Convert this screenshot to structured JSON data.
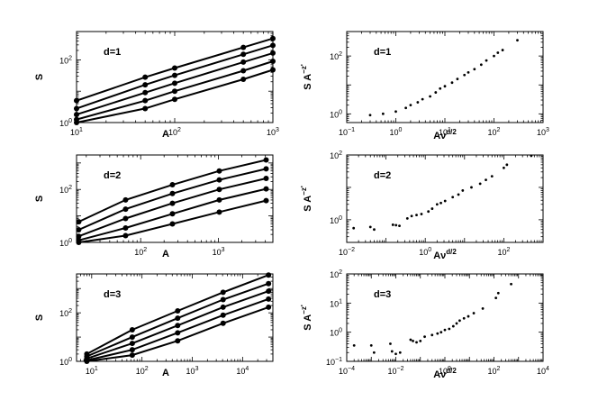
{
  "chart_data": [
    {
      "id": "left-d1",
      "type": "line",
      "panel_label": "d=1",
      "xlabel": "A",
      "ylabel": "S",
      "xscale": "log",
      "yscale": "log",
      "xlim": [
        10,
        1000
      ],
      "ylim": [
        1,
        800
      ],
      "xticks": [
        {
          "v": 10,
          "base": "10",
          "exp": "1"
        },
        {
          "v": 100,
          "base": "10",
          "exp": "2"
        },
        {
          "v": 1000,
          "base": "10",
          "exp": "3"
        }
      ],
      "yticks": [
        {
          "v": 1,
          "base": "10",
          "exp": "0"
        },
        {
          "v": 100,
          "base": "10",
          "exp": "2"
        }
      ],
      "x": [
        10,
        50,
        100,
        500,
        1000
      ],
      "series": [
        {
          "values": [
            5.0,
            28,
            55,
            250,
            480
          ]
        },
        {
          "values": [
            2.8,
            16,
            32,
            150,
            290
          ]
        },
        {
          "values": [
            1.8,
            9,
            18,
            85,
            165
          ]
        },
        {
          "values": [
            1.25,
            5,
            10,
            45,
            90
          ]
        },
        {
          "values": [
            1.0,
            2.8,
            5.5,
            24,
            48
          ]
        }
      ]
    },
    {
      "id": "left-d2",
      "type": "line",
      "panel_label": "d=2",
      "xlabel": "A",
      "ylabel": "S",
      "xscale": "log",
      "yscale": "log",
      "xlim": [
        15,
        5000
      ],
      "ylim": [
        1,
        2000
      ],
      "xticks": [
        {
          "v": 100,
          "base": "10",
          "exp": "2"
        },
        {
          "v": 1000,
          "base": "10",
          "exp": "3"
        }
      ],
      "yticks": [
        {
          "v": 1,
          "base": "10",
          "exp": "0"
        },
        {
          "v": 100,
          "base": "10",
          "exp": "2"
        }
      ],
      "x": [
        16,
        64,
        256,
        1024,
        4096
      ],
      "series": [
        {
          "values": [
            6,
            40,
            150,
            500,
            1300
          ]
        },
        {
          "values": [
            3,
            18,
            70,
            230,
            600
          ]
        },
        {
          "values": [
            1.7,
            8,
            30,
            100,
            260
          ]
        },
        {
          "values": [
            1.2,
            3.5,
            12,
            40,
            105
          ]
        },
        {
          "values": [
            1.0,
            1.8,
            5,
            14,
            38
          ]
        }
      ]
    },
    {
      "id": "left-d3",
      "type": "line",
      "panel_label": "d=3",
      "xlabel": "A",
      "ylabel": "S",
      "xscale": "log",
      "yscale": "log",
      "xlim": [
        5,
        40000
      ],
      "ylim": [
        1,
        4000
      ],
      "xticks": [
        {
          "v": 10,
          "base": "10",
          "exp": "1"
        },
        {
          "v": 100,
          "base": "10",
          "exp": "2"
        },
        {
          "v": 1000,
          "base": "10",
          "exp": "3"
        },
        {
          "v": 10000,
          "base": "10",
          "exp": "4"
        }
      ],
      "yticks": [
        {
          "v": 1,
          "base": "10",
          "exp": "0"
        },
        {
          "v": 100,
          "base": "10",
          "exp": "2"
        }
      ],
      "x": [
        8,
        64,
        512,
        4096,
        32768
      ],
      "series": [
        {
          "values": [
            2.0,
            20,
            120,
            700,
            3600
          ]
        },
        {
          "values": [
            1.6,
            10,
            60,
            350,
            1600
          ]
        },
        {
          "values": [
            1.3,
            5.5,
            30,
            170,
            780
          ]
        },
        {
          "values": [
            1.1,
            3,
            15,
            80,
            370
          ]
        },
        {
          "values": [
            1.0,
            1.8,
            7,
            37,
            170
          ]
        }
      ]
    },
    {
      "id": "right-d1",
      "type": "scatter",
      "panel_label": "d=1",
      "xlabel_base": "Aν",
      "xlabel_sup": "d/2",
      "ylabel_base": "S A",
      "ylabel_sup": "−z'",
      "xscale": "log",
      "yscale": "log",
      "xlim": [
        0.1,
        1000
      ],
      "ylim": [
        0.5,
        700
      ],
      "xticks": [
        {
          "v": 0.1,
          "base": "10",
          "exp": "−1"
        },
        {
          "v": 1,
          "base": "10",
          "exp": "0"
        },
        {
          "v": 10,
          "base": "10",
          "exp": "1"
        },
        {
          "v": 100,
          "base": "10",
          "exp": "2"
        },
        {
          "v": 1000,
          "base": "10",
          "exp": "3"
        }
      ],
      "yticks": [
        {
          "v": 1,
          "base": "10",
          "exp": "0"
        },
        {
          "v": 100,
          "base": "10",
          "exp": "2"
        }
      ],
      "x": [
        0.3,
        0.55,
        1.0,
        1.6,
        2.0,
        2.8,
        3.5,
        5,
        6.5,
        8,
        10,
        14,
        18,
        25,
        30,
        40,
        55,
        70,
        100,
        120,
        150,
        300
      ],
      "y": [
        0.9,
        1.0,
        1.2,
        1.6,
        2.0,
        2.5,
        3.2,
        4.0,
        5.5,
        7.5,
        9,
        12,
        16,
        22,
        27,
        35,
        50,
        70,
        100,
        130,
        160,
        350
      ]
    },
    {
      "id": "right-d2",
      "type": "scatter",
      "panel_label": "d=2",
      "xlabel_base": "Aν",
      "xlabel_sup": "d/2",
      "ylabel_base": "S A",
      "ylabel_sup": "−z'",
      "xscale": "log",
      "yscale": "log",
      "xlim": [
        0.01,
        1000
      ],
      "ylim": [
        0.2,
        100
      ],
      "xticks": [
        {
          "v": 0.01,
          "base": "10",
          "exp": "−2"
        },
        {
          "v": 1,
          "base": "10",
          "exp": "0"
        },
        {
          "v": 100,
          "base": "10",
          "exp": "2"
        }
      ],
      "yticks": [
        {
          "v": 1,
          "base": "10",
          "exp": "0"
        },
        {
          "v": 100,
          "base": "10",
          "exp": "2"
        }
      ],
      "x": [
        0.015,
        0.04,
        0.05,
        0.15,
        0.18,
        0.22,
        0.35,
        0.45,
        0.6,
        0.8,
        1.2,
        1.5,
        2.0,
        2.5,
        3.2,
        5,
        7,
        9,
        15,
        25,
        35,
        50,
        100,
        120,
        500
      ],
      "y": [
        0.55,
        0.6,
        0.5,
        0.7,
        0.68,
        0.65,
        1.1,
        1.3,
        1.4,
        1.5,
        1.8,
        2.2,
        3.0,
        3.3,
        3.8,
        5,
        6,
        8,
        10,
        13,
        17,
        22,
        40,
        50,
        95
      ]
    },
    {
      "id": "right-d3",
      "type": "scatter",
      "panel_label": "d=3",
      "xlabel_base": "Aν",
      "xlabel_sup": "d/2",
      "ylabel_base": "S A",
      "ylabel_sup": "−z'",
      "xscale": "log",
      "yscale": "log",
      "xlim": [
        0.0001,
        10000
      ],
      "ylim": [
        0.1,
        100
      ],
      "xticks": [
        {
          "v": 0.0001,
          "base": "10",
          "exp": "−4"
        },
        {
          "v": 0.01,
          "base": "10",
          "exp": "−2"
        },
        {
          "v": 1,
          "base": "10",
          "exp": "0"
        },
        {
          "v": 100,
          "base": "10",
          "exp": "2"
        },
        {
          "v": 10000,
          "base": "10",
          "exp": "4"
        }
      ],
      "yticks": [
        {
          "v": 0.1,
          "base": "10",
          "exp": "−1"
        },
        {
          "v": 1,
          "base": "10",
          "exp": "0"
        },
        {
          "v": 10,
          "base": "10",
          "exp": "1"
        },
        {
          "v": 100,
          "base": "10",
          "exp": "2"
        }
      ],
      "x": [
        0.0002,
        0.001,
        0.0013,
        0.006,
        0.007,
        0.01,
        0.015,
        0.04,
        0.05,
        0.07,
        0.1,
        0.15,
        0.3,
        0.5,
        0.7,
        1.0,
        1.5,
        2.2,
        3,
        4,
        6,
        9,
        15,
        35,
        120,
        150,
        500
      ],
      "y": [
        0.35,
        0.35,
        0.2,
        0.4,
        0.22,
        0.18,
        0.2,
        0.55,
        0.5,
        0.45,
        0.5,
        0.7,
        0.8,
        0.9,
        1.0,
        1.2,
        1.3,
        1.6,
        2.0,
        2.5,
        3.0,
        3.5,
        4.5,
        6.5,
        15,
        22,
        45
      ]
    }
  ]
}
